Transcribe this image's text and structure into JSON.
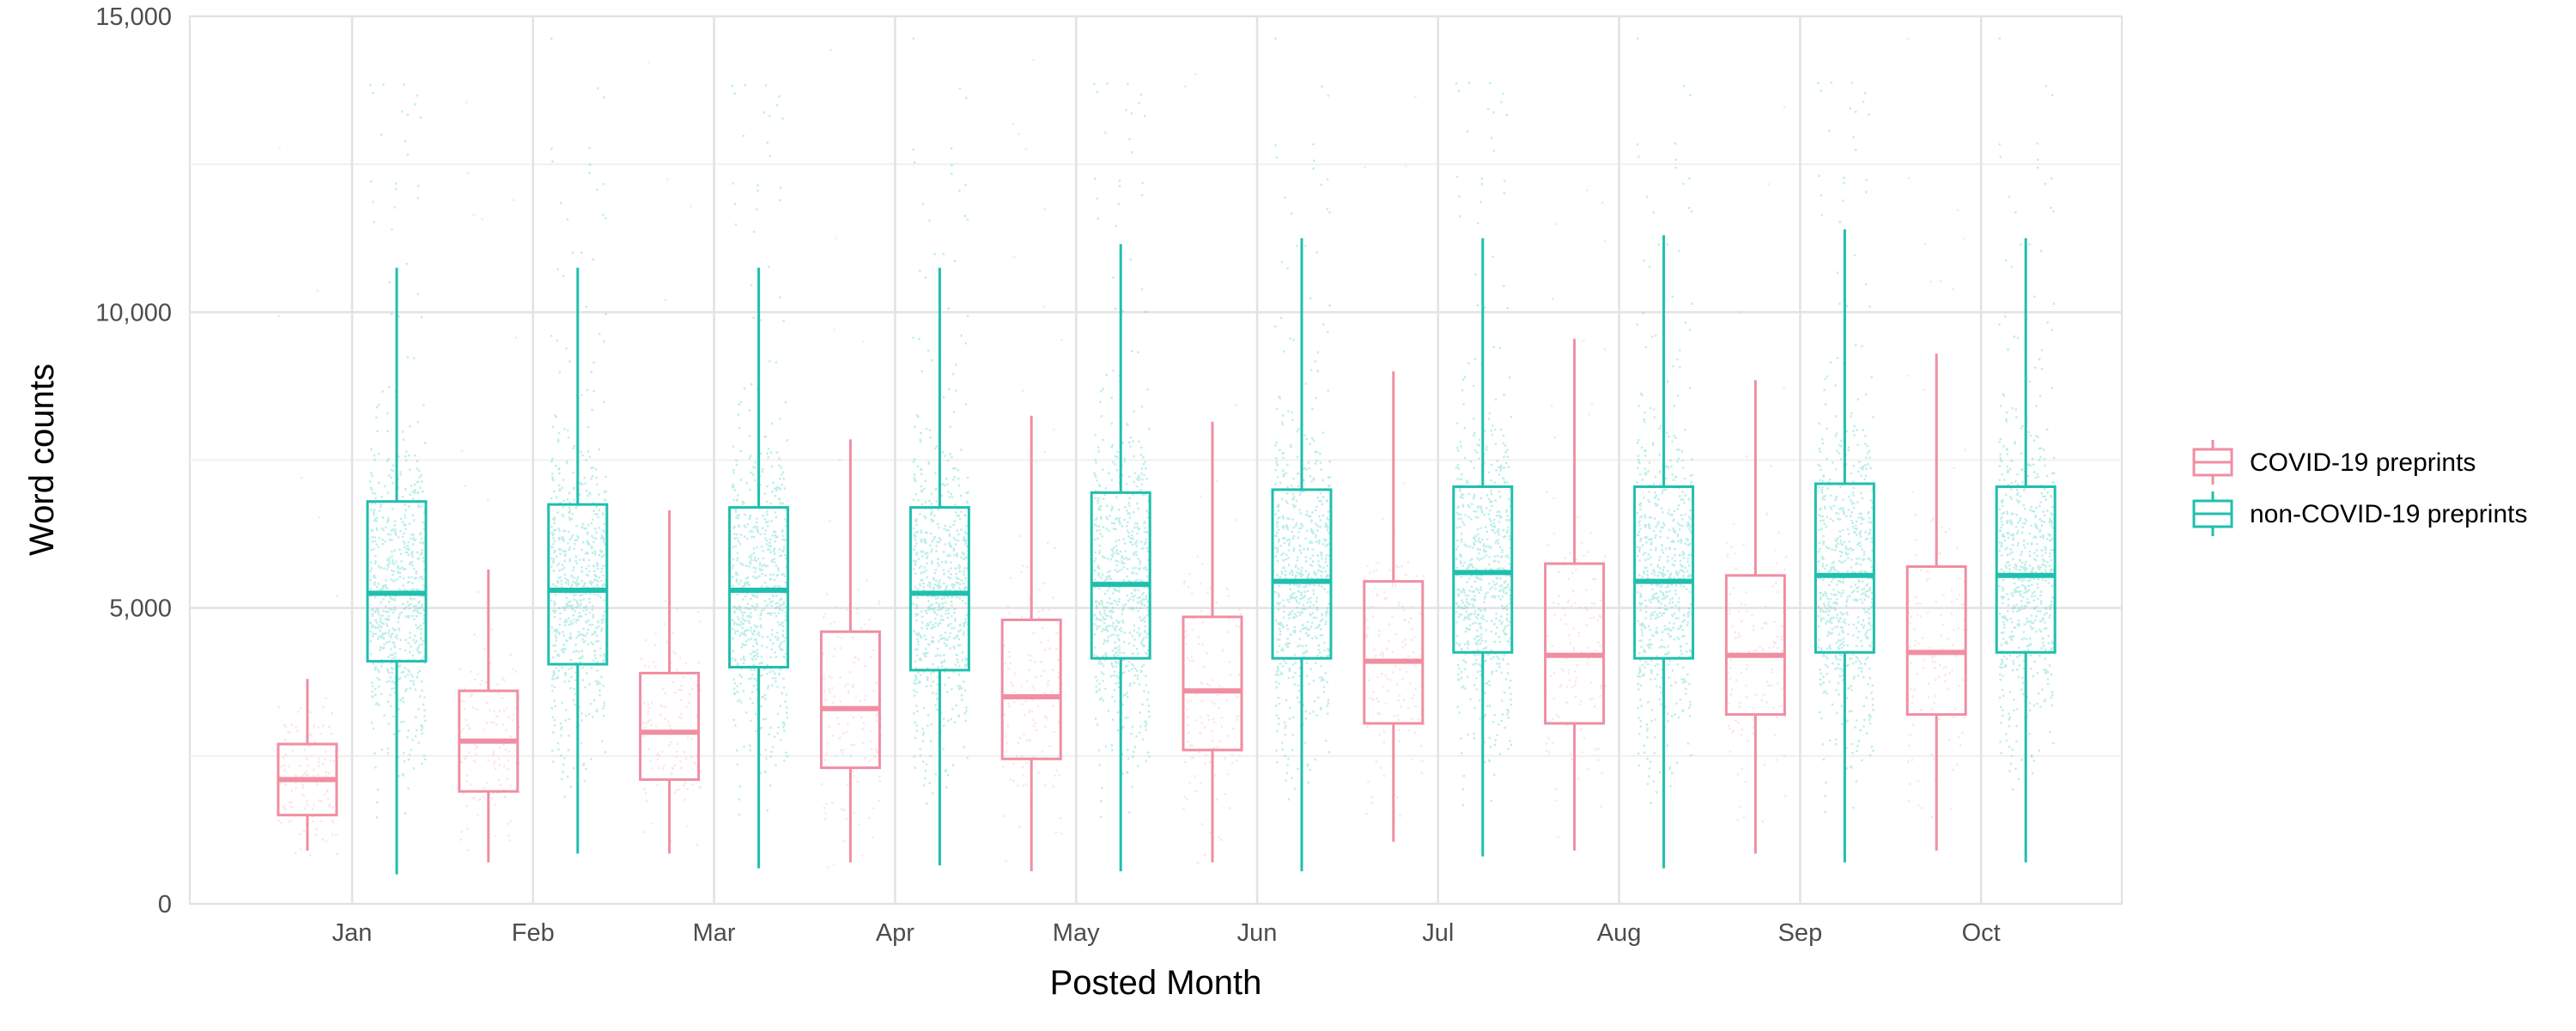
{
  "chart_data": {
    "type": "boxplot",
    "xlabel": "Posted Month",
    "ylabel": "Word counts",
    "ylim": [
      0,
      15000
    ],
    "yticks": [
      0,
      5000,
      10000,
      15000
    ],
    "ytick_labels": [
      "0",
      "5,000",
      "10,000",
      "15,000"
    ],
    "categories": [
      "Jan",
      "Feb",
      "Mar",
      "Apr",
      "May",
      "Jun",
      "Jul",
      "Aug",
      "Sep",
      "Oct"
    ],
    "grid": true,
    "legend_position": "right",
    "series": [
      {
        "name": "COVID-19 preprints",
        "color": "#f08ea2",
        "jitter_color": "#f6b3c0",
        "boxes": [
          {
            "whisker_low": 900,
            "q1": 1500,
            "median": 2100,
            "q3": 2700,
            "whisker_high": 3800
          },
          {
            "whisker_low": 700,
            "q1": 1900,
            "median": 2750,
            "q3": 3600,
            "whisker_high": 5650
          },
          {
            "whisker_low": 850,
            "q1": 2100,
            "median": 2900,
            "q3": 3900,
            "whisker_high": 6650
          },
          {
            "whisker_low": 700,
            "q1": 2300,
            "median": 3300,
            "q3": 4600,
            "whisker_high": 7850
          },
          {
            "whisker_low": 550,
            "q1": 2450,
            "median": 3500,
            "q3": 4800,
            "whisker_high": 8250
          },
          {
            "whisker_low": 700,
            "q1": 2600,
            "median": 3600,
            "q3": 4850,
            "whisker_high": 8150
          },
          {
            "whisker_low": 1050,
            "q1": 3050,
            "median": 4100,
            "q3": 5450,
            "whisker_high": 9000
          },
          {
            "whisker_low": 900,
            "q1": 3050,
            "median": 4200,
            "q3": 5750,
            "whisker_high": 9550
          },
          {
            "whisker_low": 850,
            "q1": 3200,
            "median": 4200,
            "q3": 5550,
            "whisker_high": 8850
          },
          {
            "whisker_low": 900,
            "q1": 3200,
            "median": 4250,
            "q3": 5700,
            "whisker_high": 9300
          }
        ]
      },
      {
        "name": "non-COVID-19 preprints",
        "color": "#1fbfae",
        "jitter_color": "#4fd3c2",
        "boxes": [
          {
            "whisker_low": 500,
            "q1": 4100,
            "median": 5250,
            "q3": 6800,
            "whisker_high": 10750
          },
          {
            "whisker_low": 850,
            "q1": 4050,
            "median": 5300,
            "q3": 6750,
            "whisker_high": 10750
          },
          {
            "whisker_low": 600,
            "q1": 4000,
            "median": 5300,
            "q3": 6700,
            "whisker_high": 10750
          },
          {
            "whisker_low": 650,
            "q1": 3950,
            "median": 5250,
            "q3": 6700,
            "whisker_high": 10750
          },
          {
            "whisker_low": 550,
            "q1": 4150,
            "median": 5400,
            "q3": 6950,
            "whisker_high": 11150
          },
          {
            "whisker_low": 550,
            "q1": 4150,
            "median": 5450,
            "q3": 7000,
            "whisker_high": 11250
          },
          {
            "whisker_low": 800,
            "q1": 4250,
            "median": 5600,
            "q3": 7050,
            "whisker_high": 11250
          },
          {
            "whisker_low": 600,
            "q1": 4150,
            "median": 5450,
            "q3": 7050,
            "whisker_high": 11300
          },
          {
            "whisker_low": 700,
            "q1": 4250,
            "median": 5550,
            "q3": 7100,
            "whisker_high": 11400
          },
          {
            "whisker_low": 700,
            "q1": 4250,
            "median": 5550,
            "q3": 7050,
            "whisker_high": 11250
          }
        ]
      }
    ]
  }
}
